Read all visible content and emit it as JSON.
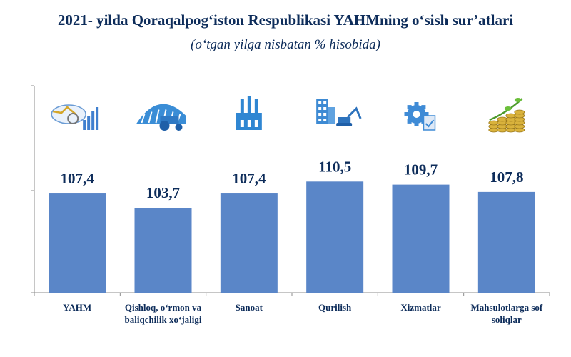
{
  "header": {
    "title": "2021- yilda Qoraqalpog‘iston Respublikasi YAHMning o‘sish sur’atlari",
    "subtitle": "(o‘tgan yilga nisbatan % hisobida)"
  },
  "colors": {
    "bar": "#5a86c8",
    "title": "#0d2c5a",
    "axis": "#8c8c8c"
  },
  "chart_data": {
    "type": "bar",
    "categories": [
      "YAHM",
      "Qishloq, o‘rmon va baliqchilik xo‘jaligi",
      "Sanoat",
      "Qurilish",
      "Xizmatlar",
      "Mahsulotlarga sof soliqlar"
    ],
    "category_lines": [
      [
        "YAHM"
      ],
      [
        "Qishloq, o‘rmon va",
        "baliqchilik xo‘jaligi"
      ],
      [
        "Sanoat"
      ],
      [
        "Qurilish"
      ],
      [
        "Xizmatlar"
      ],
      [
        "Mahsulotlarga sof",
        "soliqlar"
      ]
    ],
    "values": [
      107.4,
      103.7,
      107.4,
      110.5,
      109.7,
      107.8
    ],
    "value_labels": [
      "107,4",
      "103,7",
      "107,4",
      "110,5",
      "109,7",
      "107,8"
    ],
    "icons": [
      "gdp-chart-icon",
      "tractor-icon",
      "factory-icon",
      "construction-excavator-icon",
      "gear-services-icon",
      "coins-growth-icon"
    ],
    "grid": false,
    "legend": "none"
  }
}
